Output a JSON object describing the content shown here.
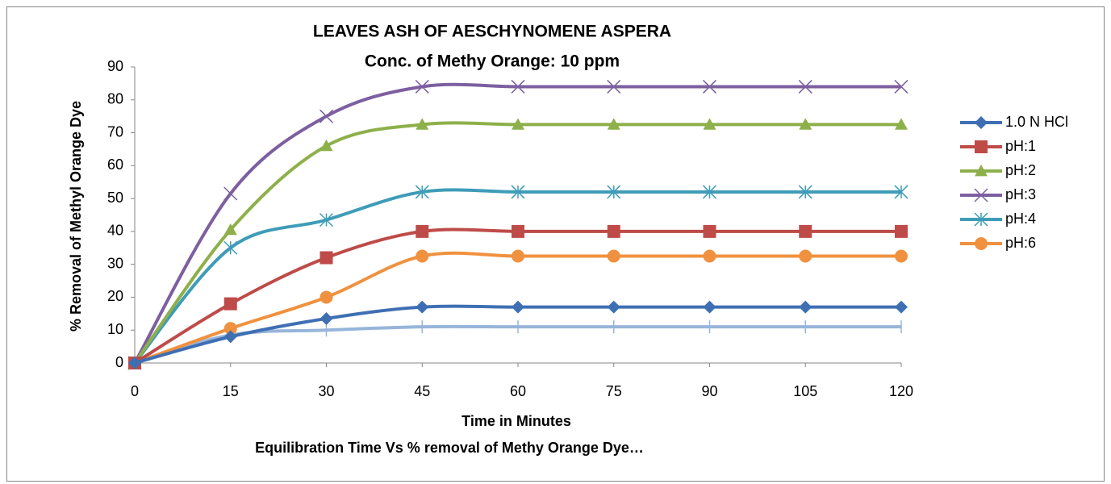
{
  "chart_data": {
    "type": "line",
    "title": "LEAVES ASH OF AESCHYNOMENE ASPERA",
    "subtitle": "Conc. of Methy Orange: 10 ppm",
    "x_label": "Time in Minutes",
    "y_label": "% Removal of Methyl Orange Dye",
    "caption": "Equilibration Time Vs % removal of Methy Orange Dye…",
    "x": [
      0,
      15,
      30,
      45,
      60,
      75,
      90,
      105,
      120
    ],
    "xlim": [
      0,
      120
    ],
    "xticks": [
      0,
      15,
      30,
      45,
      60,
      75,
      90,
      105,
      120
    ],
    "ylim": [
      0,
      90
    ],
    "yticks": [
      0,
      10,
      20,
      30,
      40,
      50,
      60,
      70,
      80,
      90
    ],
    "legend": "right",
    "series": [
      {
        "name": "1.0 N HCl",
        "color": "#3f6fb3",
        "marker": "diamond",
        "values": [
          0,
          8,
          13.5,
          17,
          17,
          17,
          17,
          17,
          17
        ]
      },
      {
        "name": "pH:1",
        "color": "#be4b48",
        "marker": "square",
        "values": [
          0,
          18,
          32,
          40,
          40,
          40,
          40,
          40,
          40
        ]
      },
      {
        "name": "pH:2",
        "color": "#8db04a",
        "marker": "triangle",
        "values": [
          0,
          40.5,
          66,
          72.5,
          72.5,
          72.5,
          72.5,
          72.5,
          72.5
        ]
      },
      {
        "name": "pH:3",
        "color": "#7d5fa0",
        "marker": "x",
        "values": [
          0,
          51.5,
          75,
          84,
          84,
          84,
          84,
          84,
          84
        ]
      },
      {
        "name": "pH:4",
        "color": "#3e9cb8",
        "marker": "star",
        "values": [
          0,
          35,
          43.5,
          52,
          52,
          52,
          52,
          52,
          52
        ]
      },
      {
        "name": "pH:6",
        "color": "#f0913f",
        "marker": "circle",
        "values": [
          0,
          10.5,
          20,
          32.5,
          32.5,
          32.5,
          32.5,
          32.5,
          32.5
        ]
      },
      {
        "color": "#97b5da",
        "marker": "bar",
        "values": [
          0,
          8.5,
          10,
          11,
          11,
          11,
          11,
          11,
          11
        ]
      }
    ]
  }
}
